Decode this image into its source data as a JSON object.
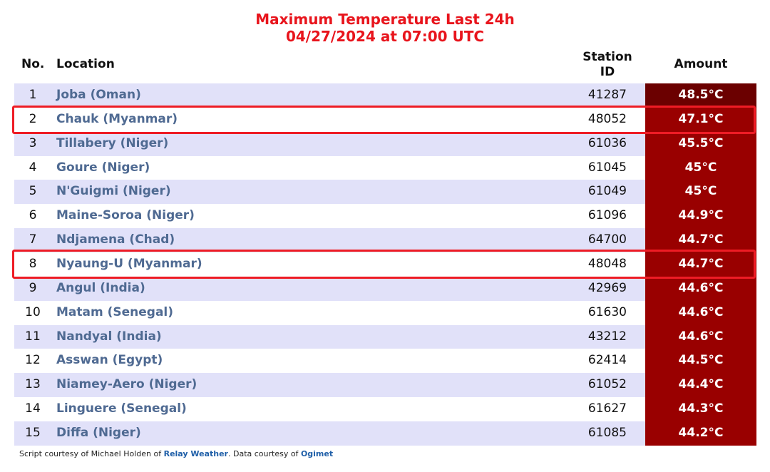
{
  "header": {
    "title": "Maximum Temperature Last 24h",
    "subtitle": "04/27/2024 at 07:00 UTC"
  },
  "table": {
    "columns": [
      "No.",
      "Location",
      "Station\nID",
      "Amount"
    ],
    "rows": [
      [
        "1",
        "Joba (Oman)",
        "41287",
        "48.5°C"
      ],
      [
        "2",
        "Chauk (Myanmar)",
        "48052",
        "47.1°C"
      ],
      [
        "3",
        "Tillabery (Niger)",
        "61036",
        "45.5°C"
      ],
      [
        "4",
        "Goure (Niger)",
        "61045",
        "45°C"
      ],
      [
        "5",
        "N'Guigmi (Niger)",
        "61049",
        "45°C"
      ],
      [
        "6",
        "Maine-Soroa (Niger)",
        "61096",
        "44.9°C"
      ],
      [
        "7",
        "Ndjamena (Chad)",
        "64700",
        "44.7°C"
      ],
      [
        "8",
        "Nyaung-U (Myanmar)",
        "48048",
        "44.7°C"
      ],
      [
        "9",
        "Angul (India)",
        "42969",
        "44.6°C"
      ],
      [
        "10",
        "Matam (Senegal)",
        "61630",
        "44.6°C"
      ],
      [
        "11",
        "Nandyal (India)",
        "43212",
        "44.6°C"
      ],
      [
        "12",
        "Asswan (Egypt)",
        "62414",
        "44.5°C"
      ],
      [
        "13",
        "Niamey-Aero (Niger)",
        "61052",
        "44.4°C"
      ],
      [
        "14",
        "Linguere (Senegal)",
        "61627",
        "44.3°C"
      ],
      [
        "15",
        "Diffa (Niger)",
        "61085",
        "44.2°C"
      ]
    ]
  },
  "footer": {
    "text1": "Script courtesy of  Michael Holden of ",
    "link1": "Relay Weather",
    "text2": ". Data courtesy of ",
    "link2": "Ogimet"
  }
}
